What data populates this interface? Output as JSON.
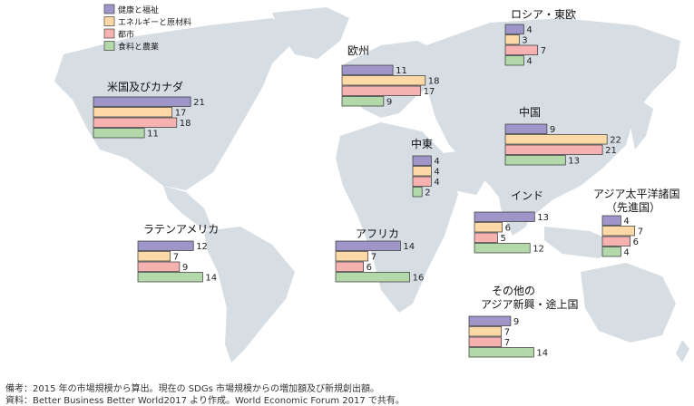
{
  "chart_data": {
    "type": "bar",
    "orientation": "horizontal",
    "legend": [
      {
        "name": "健康と福祉",
        "color": "#9f95c8"
      },
      {
        "name": "エネルギーと原材料",
        "color": "#fcd9a6"
      },
      {
        "name": "都市",
        "color": "#f5b2b0"
      },
      {
        "name": "食料と農業",
        "color": "#b3d9aa"
      }
    ],
    "regions": [
      {
        "name": "米国及びカナダ",
        "values": [
          21,
          17,
          18,
          11
        ]
      },
      {
        "name": "欧州",
        "values": [
          11,
          18,
          17,
          9
        ]
      },
      {
        "name": "ロシア・東欧",
        "values": [
          4,
          3,
          7,
          4
        ]
      },
      {
        "name": "中東",
        "values": [
          4,
          4,
          4,
          2
        ]
      },
      {
        "name": "中国",
        "values": [
          9,
          22,
          21,
          13
        ]
      },
      {
        "name": "アジア太平洋諸国（先進国）",
        "values": [
          4,
          7,
          6,
          4
        ]
      },
      {
        "name": "インド",
        "values": [
          13,
          6,
          5,
          12
        ]
      },
      {
        "name": "ラテンアメリカ",
        "values": [
          12,
          7,
          9,
          14
        ]
      },
      {
        "name": "アフリカ",
        "values": [
          14,
          7,
          6,
          16
        ]
      },
      {
        "name": "その他のアジア新興・途上国",
        "values": [
          9,
          7,
          7,
          14
        ]
      }
    ],
    "legend_placement": "top-left"
  },
  "notes": {
    "line1": "備考：2015 年の市場規模から算出。現在の SDGs 市場規模からの増加額及び新規創出額。",
    "line2": "資料：Better Business Better World2017 より作成。World Economic Forum 2017 で共有。"
  }
}
